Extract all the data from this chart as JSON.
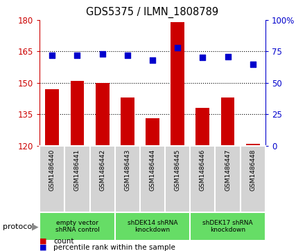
{
  "title": "GDS5375 / ILMN_1808789",
  "samples": [
    "GSM1486440",
    "GSM1486441",
    "GSM1486442",
    "GSM1486443",
    "GSM1486444",
    "GSM1486445",
    "GSM1486446",
    "GSM1486447",
    "GSM1486448"
  ],
  "counts": [
    147,
    151,
    150,
    143,
    133,
    179,
    138,
    143,
    121
  ],
  "percentiles": [
    72,
    72,
    73,
    72,
    68,
    78,
    70,
    71,
    65
  ],
  "ylim_left": [
    120,
    180
  ],
  "ylim_right": [
    0,
    100
  ],
  "yticks_left": [
    120,
    135,
    150,
    165,
    180
  ],
  "yticks_right": [
    0,
    25,
    50,
    75,
    100
  ],
  "groups": [
    {
      "label": "empty vector\nshRNA control",
      "start": 0,
      "end": 3
    },
    {
      "label": "shDEK14 shRNA\nknockdown",
      "start": 3,
      "end": 6
    },
    {
      "label": "shDEK17 shRNA\nknockdown",
      "start": 6,
      "end": 9
    }
  ],
  "bar_color": "#CC0000",
  "dot_color": "#0000CC",
  "background_color": "#ffffff",
  "label_count": "count",
  "label_percentile": "percentile rank within the sample",
  "protocol_label": "protocol",
  "left_axis_color": "#CC0000",
  "right_axis_color": "#0000CC",
  "sample_box_color": "#D3D3D3",
  "group_box_color": "#66DD66",
  "box_edge_color": "#aaaaaa"
}
